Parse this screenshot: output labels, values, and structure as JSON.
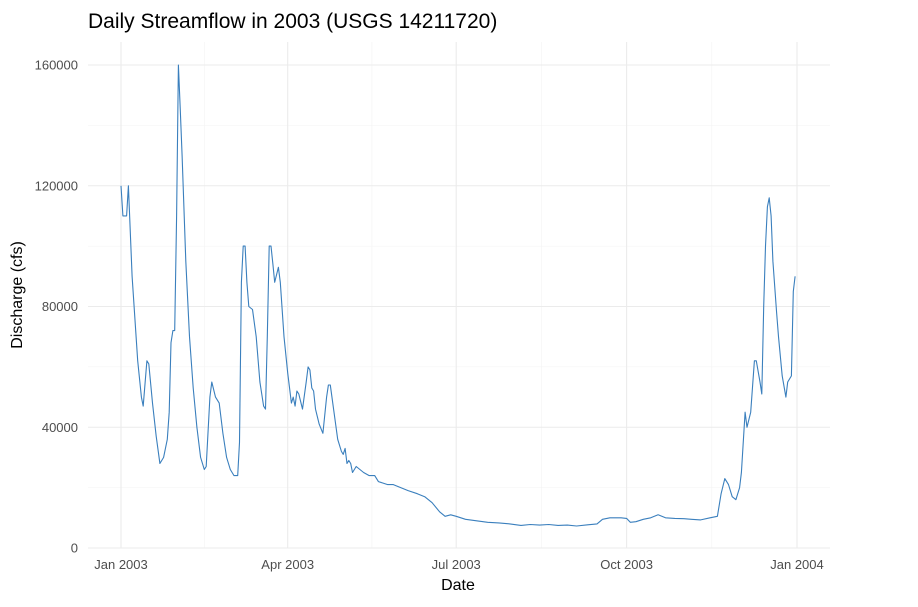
{
  "chart_data": {
    "type": "line",
    "title": "Daily Streamflow in 2003 (USGS 14211720)",
    "xlabel": "Date",
    "ylabel": "Discharge (cfs)",
    "xlim": [
      "2003-01-01",
      "2004-01-01"
    ],
    "ylim": [
      0,
      160000
    ],
    "grid": true,
    "legend": "none",
    "color": "#3a7fbd",
    "x_ticks": [
      {
        "date": "2003-01-01",
        "label": "Jan 2003"
      },
      {
        "date": "2003-04-01",
        "label": "Apr 2003"
      },
      {
        "date": "2003-07-01",
        "label": "Jul 2003"
      },
      {
        "date": "2003-10-01",
        "label": "Oct 2003"
      },
      {
        "date": "2004-01-01",
        "label": "Jan 2004"
      }
    ],
    "y_ticks": [
      {
        "value": 0,
        "label": "0"
      },
      {
        "value": 40000,
        "label": "40000"
      },
      {
        "value": 80000,
        "label": "80000"
      },
      {
        "value": 120000,
        "label": "120000"
      },
      {
        "value": 160000,
        "label": "160000"
      }
    ],
    "series": [
      {
        "points": [
          [
            "2003-01-01",
            120000
          ],
          [
            "2003-01-02",
            110000
          ],
          [
            "2003-01-04",
            110000
          ],
          [
            "2003-01-05",
            120000
          ],
          [
            "2003-01-07",
            90000
          ],
          [
            "2003-01-10",
            62000
          ],
          [
            "2003-01-12",
            50000
          ],
          [
            "2003-01-13",
            47000
          ],
          [
            "2003-01-15",
            62000
          ],
          [
            "2003-01-16",
            61000
          ],
          [
            "2003-01-18",
            48000
          ],
          [
            "2003-01-20",
            37000
          ],
          [
            "2003-01-22",
            28000
          ],
          [
            "2003-01-24",
            30000
          ],
          [
            "2003-01-26",
            36000
          ],
          [
            "2003-01-27",
            45000
          ],
          [
            "2003-01-28",
            68000
          ],
          [
            "2003-01-29",
            72000
          ],
          [
            "2003-01-30",
            72000
          ],
          [
            "2003-01-31",
            110000
          ],
          [
            "2003-02-01",
            160000
          ],
          [
            "2003-02-02",
            145000
          ],
          [
            "2003-02-03",
            130000
          ],
          [
            "2003-02-05",
            95000
          ],
          [
            "2003-02-07",
            70000
          ],
          [
            "2003-02-09",
            53000
          ],
          [
            "2003-02-11",
            40000
          ],
          [
            "2003-02-13",
            30000
          ],
          [
            "2003-02-15",
            26000
          ],
          [
            "2003-02-16",
            27000
          ],
          [
            "2003-02-18",
            50000
          ],
          [
            "2003-02-19",
            55000
          ],
          [
            "2003-02-21",
            50000
          ],
          [
            "2003-02-23",
            48000
          ],
          [
            "2003-02-25",
            38000
          ],
          [
            "2003-02-27",
            30000
          ],
          [
            "2003-03-01",
            26000
          ],
          [
            "2003-03-03",
            24000
          ],
          [
            "2003-03-05",
            24000
          ],
          [
            "2003-03-06",
            35000
          ],
          [
            "2003-03-07",
            88000
          ],
          [
            "2003-03-08",
            100000
          ],
          [
            "2003-03-09",
            100000
          ],
          [
            "2003-03-10",
            88000
          ],
          [
            "2003-03-11",
            80000
          ],
          [
            "2003-03-13",
            79000
          ],
          [
            "2003-03-15",
            70000
          ],
          [
            "2003-03-17",
            55000
          ],
          [
            "2003-03-19",
            47000
          ],
          [
            "2003-03-20",
            46000
          ],
          [
            "2003-03-21",
            70000
          ],
          [
            "2003-03-22",
            100000
          ],
          [
            "2003-03-23",
            100000
          ],
          [
            "2003-03-24",
            94000
          ],
          [
            "2003-03-25",
            88000
          ],
          [
            "2003-03-27",
            93000
          ],
          [
            "2003-03-28",
            88000
          ],
          [
            "2003-03-30",
            70000
          ],
          [
            "2003-04-01",
            58000
          ],
          [
            "2003-04-03",
            48000
          ],
          [
            "2003-04-04",
            50000
          ],
          [
            "2003-04-05",
            47000
          ],
          [
            "2003-04-06",
            52000
          ],
          [
            "2003-04-07",
            51000
          ],
          [
            "2003-04-09",
            46000
          ],
          [
            "2003-04-11",
            55000
          ],
          [
            "2003-04-12",
            60000
          ],
          [
            "2003-04-13",
            59000
          ],
          [
            "2003-04-14",
            53000
          ],
          [
            "2003-04-15",
            52000
          ],
          [
            "2003-04-16",
            46000
          ],
          [
            "2003-04-18",
            41000
          ],
          [
            "2003-04-20",
            38000
          ],
          [
            "2003-04-22",
            50000
          ],
          [
            "2003-04-23",
            54000
          ],
          [
            "2003-04-24",
            54000
          ],
          [
            "2003-04-26",
            45000
          ],
          [
            "2003-04-28",
            36000
          ],
          [
            "2003-04-30",
            32000
          ],
          [
            "2003-05-01",
            31000
          ],
          [
            "2003-05-02",
            33000
          ],
          [
            "2003-05-03",
            28000
          ],
          [
            "2003-05-04",
            29000
          ],
          [
            "2003-05-05",
            28000
          ],
          [
            "2003-05-06",
            25000
          ],
          [
            "2003-05-08",
            27000
          ],
          [
            "2003-05-10",
            26000
          ],
          [
            "2003-05-12",
            25000
          ],
          [
            "2003-05-15",
            24000
          ],
          [
            "2003-05-18",
            24000
          ],
          [
            "2003-05-20",
            22000
          ],
          [
            "2003-05-25",
            21000
          ],
          [
            "2003-05-28",
            21000
          ],
          [
            "2003-06-01",
            20000
          ],
          [
            "2003-06-05",
            19000
          ],
          [
            "2003-06-10",
            18000
          ],
          [
            "2003-06-14",
            17000
          ],
          [
            "2003-06-18",
            15000
          ],
          [
            "2003-06-22",
            12000
          ],
          [
            "2003-06-25",
            10500
          ],
          [
            "2003-06-28",
            11000
          ],
          [
            "2003-07-01",
            10500
          ],
          [
            "2003-07-06",
            9500
          ],
          [
            "2003-07-12",
            9000
          ],
          [
            "2003-07-18",
            8500
          ],
          [
            "2003-07-24",
            8300
          ],
          [
            "2003-07-30",
            8000
          ],
          [
            "2003-08-05",
            7500
          ],
          [
            "2003-08-10",
            7800
          ],
          [
            "2003-08-15",
            7600
          ],
          [
            "2003-08-20",
            7800
          ],
          [
            "2003-08-25",
            7500
          ],
          [
            "2003-08-30",
            7600
          ],
          [
            "2003-09-04",
            7300
          ],
          [
            "2003-09-10",
            7700
          ],
          [
            "2003-09-15",
            8000
          ],
          [
            "2003-09-18",
            9500
          ],
          [
            "2003-09-22",
            10000
          ],
          [
            "2003-09-28",
            10000
          ],
          [
            "2003-10-01",
            9800
          ],
          [
            "2003-10-03",
            8500
          ],
          [
            "2003-10-06",
            8700
          ],
          [
            "2003-10-10",
            9500
          ],
          [
            "2003-10-14",
            10000
          ],
          [
            "2003-10-18",
            11000
          ],
          [
            "2003-10-22",
            10000
          ],
          [
            "2003-10-27",
            9800
          ],
          [
            "2003-11-01",
            9700
          ],
          [
            "2003-11-05",
            9500
          ],
          [
            "2003-11-10",
            9300
          ],
          [
            "2003-11-15",
            10000
          ],
          [
            "2003-11-19",
            10500
          ],
          [
            "2003-11-21",
            18000
          ],
          [
            "2003-11-23",
            23000
          ],
          [
            "2003-11-25",
            21000
          ],
          [
            "2003-11-27",
            17000
          ],
          [
            "2003-11-29",
            16000
          ],
          [
            "2003-12-01",
            20000
          ],
          [
            "2003-12-02",
            25000
          ],
          [
            "2003-12-04",
            45000
          ],
          [
            "2003-12-05",
            40000
          ],
          [
            "2003-12-07",
            45000
          ],
          [
            "2003-12-09",
            62000
          ],
          [
            "2003-12-10",
            62000
          ],
          [
            "2003-12-12",
            55000
          ],
          [
            "2003-12-13",
            51000
          ],
          [
            "2003-12-14",
            80000
          ],
          [
            "2003-12-15",
            100000
          ],
          [
            "2003-12-16",
            113000
          ],
          [
            "2003-12-17",
            116000
          ],
          [
            "2003-12-18",
            110000
          ],
          [
            "2003-12-19",
            95000
          ],
          [
            "2003-12-21",
            78000
          ],
          [
            "2003-12-22",
            70000
          ],
          [
            "2003-12-24",
            57000
          ],
          [
            "2003-12-26",
            50000
          ],
          [
            "2003-12-27",
            55000
          ],
          [
            "2003-12-29",
            57000
          ],
          [
            "2003-12-30",
            85000
          ],
          [
            "2003-12-31",
            90000
          ]
        ]
      }
    ]
  }
}
